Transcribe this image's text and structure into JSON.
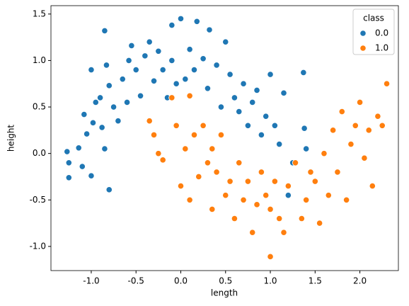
{
  "chart_data": {
    "type": "scatter",
    "x_label": "length",
    "y_label": "height",
    "legend_title": "class",
    "legend_position": "upper right",
    "xlim": [
      -1.45,
      2.43
    ],
    "ylim": [
      -1.26,
      1.59
    ],
    "xticks": [
      {
        "value": -1,
        "label": "-1.0"
      },
      -0.5,
      {
        "value": 0,
        "label": "0.0"
      },
      0.5,
      {
        "value": 1,
        "label": "1.0"
      },
      1.5,
      {
        "value": 2,
        "label": "2.0"
      }
    ],
    "yticks": [
      {
        "value": -1,
        "label": "-1.0"
      },
      -0.5,
      {
        "value": 0,
        "label": "0.0"
      },
      0.5,
      {
        "value": 1,
        "label": "1.0"
      },
      1.5
    ],
    "series": [
      {
        "name": "0.0",
        "color": "#1f77b4",
        "x": [
          -1.27,
          -1.25,
          -1.25,
          -1.14,
          -1.1,
          -1.0,
          -1.08,
          -1.05,
          -0.98,
          -0.95,
          -1.0,
          -0.9,
          -0.88,
          -0.85,
          -0.8,
          -0.8,
          -0.83,
          -0.85,
          -0.75,
          -0.7,
          -0.65,
          -0.6,
          -0.58,
          -0.55,
          -0.5,
          -0.45,
          -0.4,
          -0.35,
          -0.3,
          -0.25,
          -0.2,
          -0.15,
          -0.1,
          -0.1,
          -0.05,
          0.0,
          0.05,
          0.1,
          0.15,
          0.18,
          0.25,
          0.3,
          0.32,
          0.4,
          0.45,
          0.5,
          0.55,
          0.6,
          0.65,
          0.7,
          0.75,
          0.8,
          0.85,
          0.9,
          0.95,
          1.0,
          1.05,
          1.1,
          1.15,
          1.2,
          1.25,
          1.37,
          1.38,
          1.4
        ],
        "y": [
          0.02,
          -0.1,
          -0.26,
          0.06,
          -0.14,
          -0.24,
          0.42,
          0.21,
          0.33,
          0.55,
          0.9,
          0.6,
          0.28,
          0.05,
          -0.39,
          0.73,
          0.95,
          1.32,
          0.5,
          0.35,
          0.8,
          0.55,
          1.0,
          1.16,
          0.9,
          0.62,
          1.05,
          1.2,
          0.78,
          1.1,
          0.9,
          0.6,
          1.0,
          1.38,
          0.75,
          1.45,
          0.8,
          1.12,
          0.9,
          1.42,
          1.02,
          0.7,
          1.33,
          0.95,
          0.5,
          1.2,
          0.85,
          0.6,
          0.45,
          0.75,
          0.3,
          0.55,
          0.68,
          0.2,
          0.4,
          0.85,
          0.3,
          0.1,
          0.65,
          -0.45,
          -0.1,
          0.87,
          0.27,
          0.05
        ]
      },
      {
        "name": "1.0",
        "color": "#ff7f0e",
        "x": [
          -0.35,
          -0.3,
          -0.25,
          -0.2,
          -0.1,
          -0.05,
          0.0,
          0.05,
          0.1,
          0.1,
          0.15,
          0.2,
          0.25,
          0.3,
          0.35,
          0.35,
          0.4,
          0.45,
          0.5,
          0.55,
          0.6,
          0.65,
          0.7,
          0.75,
          0.8,
          0.85,
          0.9,
          0.95,
          1.0,
          1.0,
          1.05,
          1.1,
          1.15,
          1.2,
          1.28,
          1.35,
          1.4,
          1.45,
          1.5,
          1.55,
          1.6,
          1.65,
          1.7,
          1.75,
          1.8,
          1.85,
          1.9,
          1.95,
          2.0,
          2.05,
          2.1,
          2.14,
          2.2,
          2.25,
          2.3
        ],
        "y": [
          0.35,
          0.2,
          0.0,
          -0.07,
          0.6,
          0.3,
          -0.35,
          0.05,
          -0.5,
          0.62,
          0.2,
          -0.25,
          0.3,
          -0.1,
          0.05,
          -0.6,
          -0.2,
          0.2,
          -0.45,
          -0.3,
          -0.7,
          -0.1,
          -0.5,
          -0.3,
          -0.85,
          -0.55,
          -0.2,
          -0.45,
          -1.11,
          -0.6,
          -0.3,
          -0.7,
          -0.85,
          -0.35,
          -0.1,
          -0.7,
          -0.5,
          -0.2,
          -0.3,
          -0.75,
          0.0,
          -0.45,
          0.25,
          -0.2,
          0.45,
          -0.5,
          0.1,
          0.3,
          0.55,
          -0.05,
          0.25,
          -0.35,
          0.4,
          0.3,
          0.75
        ]
      }
    ]
  }
}
